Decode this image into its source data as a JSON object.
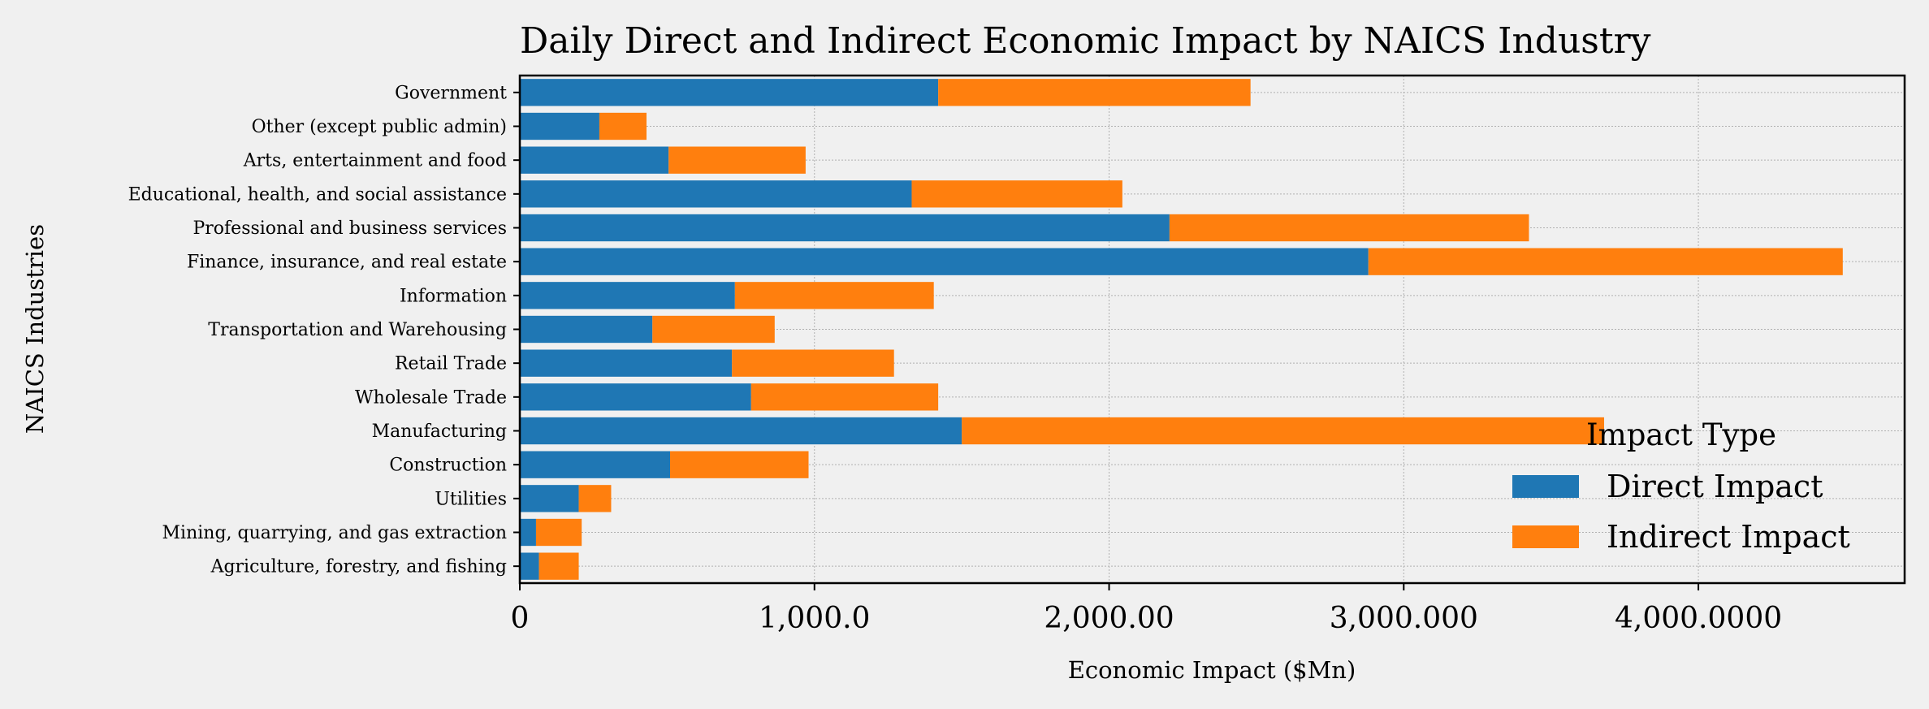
{
  "chart_data": {
    "type": "bar",
    "orientation": "horizontal",
    "stacked": true,
    "title": "Daily Direct and Indirect Economic Impact by NAICS Industry",
    "xlabel": "Economic Impact ($Mn)",
    "ylabel": "NAICS Industries",
    "xlim": [
      0,
      4700
    ],
    "xticks": [
      {
        "value": 0,
        "label": "0"
      },
      {
        "value": 1000,
        "label": "1,000.0"
      },
      {
        "value": 2000,
        "label": "2,000.00"
      },
      {
        "value": 3000,
        "label": "3,000.000"
      },
      {
        "value": 4000,
        "label": "4,000.0000"
      }
    ],
    "grid": true,
    "legend": {
      "title": "Impact Type",
      "position": "lower-right"
    },
    "categories": [
      "Government",
      "Other (except public admin)",
      "Arts, entertainment and food",
      "Educational, health, and social assistance",
      "Professional and business services",
      "Finance, insurance, and real estate",
      "Information",
      "Transportation and Warehousing",
      "Retail Trade",
      "Wholesale Trade",
      "Manufacturing",
      "Construction",
      "Utilities",
      "Mining, quarrying, and gas extraction",
      "Agriculture, forestry, and fishing"
    ],
    "series": [
      {
        "name": "Direct Impact",
        "color": "#1f77b4",
        "values": [
          1420,
          270,
          505,
          1330,
          2205,
          2880,
          730,
          450,
          720,
          785,
          1500,
          510,
          200,
          55,
          65
        ]
      },
      {
        "name": "Indirect Impact",
        "color": "#ff7f0e",
        "values": [
          1060,
          160,
          465,
          715,
          1220,
          1610,
          675,
          415,
          550,
          635,
          2180,
          470,
          110,
          155,
          135
        ]
      }
    ]
  }
}
